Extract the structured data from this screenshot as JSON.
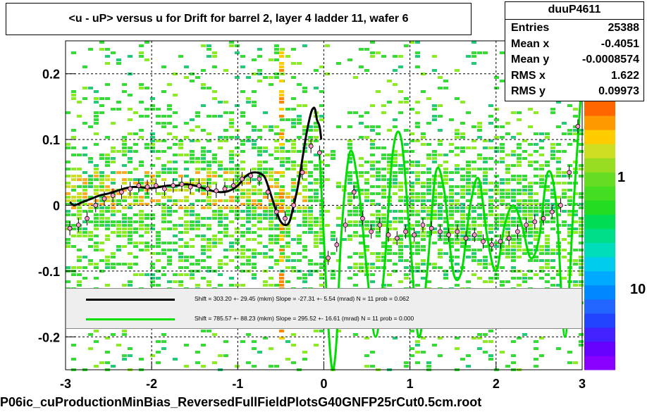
{
  "title": "<u - uP>       versus   u for Drift for barrel 2, layer 4 ladder 11, wafer 6",
  "stats": {
    "name": "duuP4611",
    "rows": [
      {
        "label": "Entries",
        "value": "25388"
      },
      {
        "label": "Mean x",
        "value": "-0.4051"
      },
      {
        "label": "Mean y",
        "value": "-0.0008574"
      },
      {
        "label": "RMS x",
        "value": "1.622"
      },
      {
        "label": "RMS y",
        "value": "0.09973"
      }
    ]
  },
  "legend": [
    {
      "color": "#000000",
      "text": "Shift =   303.20 +- 29.45 (mkm) Slope =   -27.31 +- 5.54 (mrad)  N = 11 prob = 0.062"
    },
    {
      "color": "#00dd00",
      "text": "Shift =   785.57 +- 88.23 (mkm) Slope =   295.52 +- 16.61 (mrad)  N = 11 prob = 0.000"
    }
  ],
  "footer": "P06ic_cuProductionMinBias_ReversedFullFieldPlotsG40GNFP25rCut0.5cm.root",
  "colors": {
    "accent_green": "#00dd00",
    "fit_black": "#000000",
    "palette_top": "#ff6600",
    "palette_bottom": "#8800ff"
  },
  "chart_data": {
    "type": "heatmap",
    "title": "<u - uP>       versus   u for Drift for barrel 2, layer 4 ladder 11, wafer 6",
    "xlim": [
      -3,
      3
    ],
    "ylim": [
      -0.25,
      0.25
    ],
    "x_ticks": [
      -3,
      -2,
      -1,
      0,
      1,
      2,
      3
    ],
    "x_tick_labels": [
      "-3",
      "-2",
      "-1",
      "0",
      "1",
      "2",
      "3"
    ],
    "y_ticks": [
      -0.2,
      -0.1,
      0,
      0.1,
      0.2
    ],
    "y_tick_labels": [
      "-0.2",
      "-0.1",
      "0",
      "0.1",
      "0.2"
    ],
    "grid": true,
    "colorbar_labels": [
      "1",
      "10"
    ],
    "profile_points": {
      "x": [
        -2.95,
        -2.85,
        -2.75,
        -2.65,
        -2.55,
        -2.45,
        -2.35,
        -2.25,
        -2.15,
        -2.05,
        -1.95,
        -1.85,
        -1.75,
        -1.65,
        -1.55,
        -1.45,
        -1.35,
        -1.25,
        -1.15,
        -1.05,
        -0.95,
        -0.85,
        -0.75,
        -0.65,
        -0.55,
        -0.45,
        -0.35,
        -0.25,
        -0.15,
        -0.05,
        0.05,
        0.15,
        0.25,
        0.35,
        0.45,
        0.55,
        0.65,
        0.75,
        0.85,
        0.95,
        1.05,
        1.15,
        1.25,
        1.35,
        1.45,
        1.55,
        1.65,
        1.75,
        1.85,
        1.95,
        2.05,
        2.15,
        2.25,
        2.35,
        2.45,
        2.55,
        2.65,
        2.75,
        2.85,
        2.95
      ],
      "y": [
        -0.035,
        -0.03,
        -0.02,
        0.0,
        0.01,
        0.015,
        0.02,
        0.025,
        0.03,
        0.028,
        0.03,
        0.025,
        0.03,
        0.032,
        0.028,
        0.03,
        0.025,
        0.022,
        0.025,
        0.03,
        0.04,
        0.045,
        0.04,
        0.02,
        -0.01,
        -0.02,
        0.0,
        0.05,
        0.09,
        0.08,
        -0.08,
        -0.06,
        -0.03,
        0.02,
        -0.02,
        -0.04,
        -0.03,
        -0.045,
        -0.05,
        -0.04,
        -0.045,
        -0.03,
        -0.035,
        -0.04,
        -0.045,
        -0.04,
        -0.05,
        -0.045,
        -0.055,
        -0.06,
        -0.055,
        -0.05,
        -0.04,
        -0.03,
        -0.025,
        -0.02,
        -0.01,
        0.0,
        0.05,
        0.12
      ]
    },
    "series": [
      {
        "name": "Shift =   303.20 +- 29.45 (mkm) Slope =   -27.31 +- 5.54 (mrad)  N = 11 prob = 0.062",
        "color": "#000000",
        "x": [
          -2.95,
          -2.9,
          -2.8,
          -2.7,
          -2.6,
          -2.5,
          -2.4,
          -2.3,
          -2.2,
          -2.1,
          -2.0,
          -1.9,
          -1.8,
          -1.7,
          -1.6,
          -1.5,
          -1.4,
          -1.3,
          -1.2,
          -1.1,
          -1.0,
          -0.9,
          -0.8,
          -0.7,
          -0.65,
          -0.6,
          -0.55,
          -0.5,
          -0.45,
          -0.4,
          -0.35,
          -0.3,
          -0.25,
          -0.2,
          -0.15,
          -0.12,
          -0.1,
          -0.08,
          -0.05,
          -0.03
        ],
        "y": [
          0.005,
          0.0,
          0.005,
          0.01,
          0.015,
          0.018,
          0.022,
          0.026,
          0.028,
          0.027,
          0.026,
          0.028,
          0.03,
          0.03,
          0.032,
          0.03,
          0.026,
          0.022,
          0.02,
          0.022,
          0.03,
          0.045,
          0.05,
          0.045,
          0.03,
          0.01,
          -0.01,
          -0.025,
          -0.03,
          -0.025,
          0.0,
          0.03,
          0.07,
          0.11,
          0.14,
          0.148,
          0.145,
          0.13,
          0.12,
          0.1
        ]
      },
      {
        "name": "Shift =   785.57 +- 88.23 (mkm) Slope =   295.52 +- 16.61 (mrad)  N = 11 prob = 0.000",
        "color": "#00dd00",
        "x": [
          -0.05,
          0.0,
          0.05,
          0.1,
          0.15,
          0.2,
          0.3,
          0.4,
          0.5,
          0.6,
          0.7,
          0.8,
          0.9,
          1.0,
          1.1,
          1.2,
          1.3,
          1.4,
          1.5,
          1.6,
          1.7,
          1.8,
          1.9,
          2.0,
          2.1,
          2.2,
          2.3,
          2.4,
          2.5,
          2.6,
          2.7,
          2.8,
          2.9,
          3.0
        ],
        "y": [
          0.08,
          -0.05,
          -0.18,
          -0.25,
          -0.2,
          -0.05,
          0.08,
          0.03,
          -0.1,
          -0.2,
          -0.1,
          0.08,
          0.1,
          -0.05,
          -0.2,
          -0.1,
          0.05,
          0.02,
          -0.1,
          -0.1,
          0.0,
          0.04,
          -0.05,
          -0.1,
          -0.03,
          0.0,
          -0.03,
          -0.08,
          -0.05,
          0.05,
          0.0,
          -0.2,
          0.0,
          0.2
        ]
      }
    ]
  }
}
